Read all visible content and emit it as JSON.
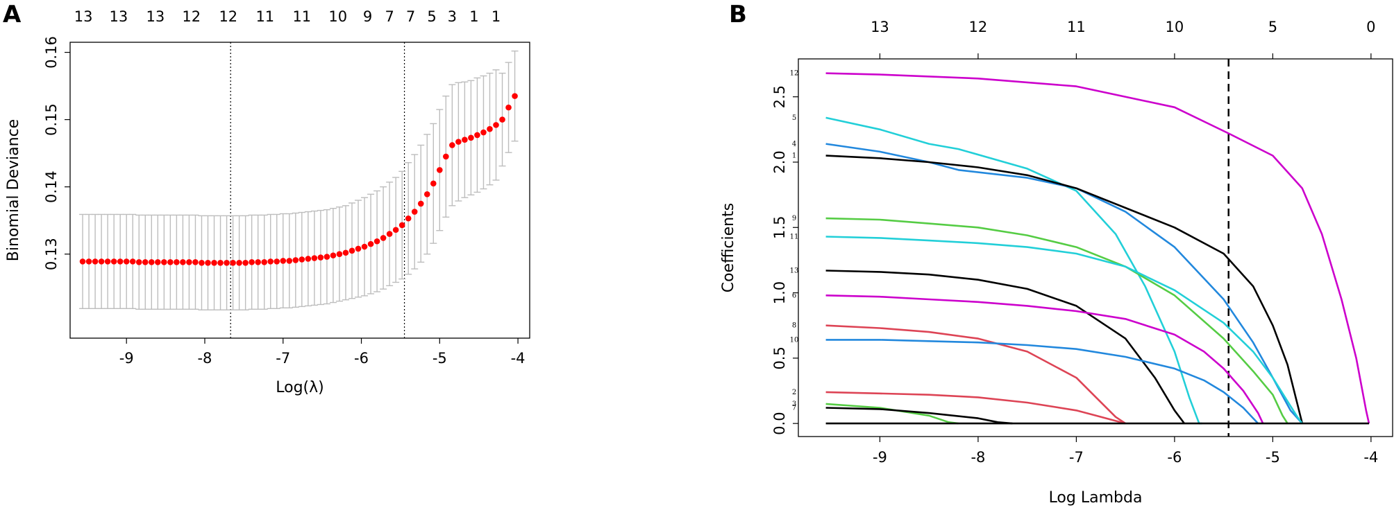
{
  "chart_data": [
    {
      "panel": "A",
      "type": "scatter",
      "xlabel": "Log(λ)",
      "ylabel": "Binomial Deviance",
      "xlim": [
        -9.72,
        -3.85
      ],
      "ylim": [
        0.1175,
        0.1615
      ],
      "x_ticks": [
        -9,
        -8,
        -7,
        -6,
        -5,
        -4
      ],
      "y_ticks": [
        0.13,
        0.14,
        0.15,
        0.16
      ],
      "top_axis_labels": [
        "13",
        "13",
        "13",
        "12",
        "12",
        "11",
        "11",
        "10",
        "9",
        "7",
        "7",
        "5",
        "3",
        "1",
        "1"
      ],
      "top_axis_positions": [
        -9.55,
        -9.1,
        -8.63,
        -8.17,
        -7.7,
        -7.23,
        -6.76,
        -6.3,
        -5.92,
        -5.64,
        -5.37,
        -5.1,
        -4.84,
        -4.56,
        -4.28
      ],
      "vlines": [
        -7.67,
        -5.45
      ],
      "grid": false,
      "series": [
        {
          "x": [
            -9.56,
            -9.48,
            -9.4,
            -9.32,
            -9.24,
            -9.16,
            -9.08,
            -9.0,
            -8.92,
            -8.84,
            -8.76,
            -8.68,
            -8.6,
            -8.52,
            -8.44,
            -8.36,
            -8.28,
            -8.2,
            -8.12,
            -8.04,
            -7.96,
            -7.88,
            -7.8,
            -7.72,
            -7.64,
            -7.56,
            -7.48,
            -7.4,
            -7.32,
            -7.24,
            -7.16,
            -7.08,
            -7.0,
            -6.92,
            -6.84,
            -6.76,
            -6.68,
            -6.6,
            -6.52,
            -6.44,
            -6.36,
            -6.28,
            -6.2,
            -6.12,
            -6.04,
            -5.96,
            -5.88,
            -5.8,
            -5.72,
            -5.64,
            -5.56,
            -5.48,
            -5.4,
            -5.32,
            -5.24,
            -5.16,
            -5.08,
            -5.0,
            -4.92,
            -4.84,
            -4.76,
            -4.68,
            -4.6,
            -4.52,
            -4.44,
            -4.36,
            -4.28,
            -4.2,
            -4.12,
            -4.04
          ],
          "y": [
            0.1289,
            0.1289,
            0.1289,
            0.1289,
            0.1289,
            0.1289,
            0.1289,
            0.1289,
            0.1289,
            0.1288,
            0.1288,
            0.1288,
            0.1288,
            0.1288,
            0.1288,
            0.1288,
            0.1288,
            0.1288,
            0.1288,
            0.1287,
            0.1287,
            0.1287,
            0.1287,
            0.1287,
            0.1287,
            0.1287,
            0.1287,
            0.1288,
            0.1288,
            0.1288,
            0.1289,
            0.1289,
            0.129,
            0.129,
            0.1291,
            0.1292,
            0.1293,
            0.1294,
            0.1295,
            0.1296,
            0.1298,
            0.13,
            0.1302,
            0.1305,
            0.1308,
            0.1311,
            0.1315,
            0.1319,
            0.1324,
            0.133,
            0.1336,
            0.1343,
            0.1353,
            0.1363,
            0.1375,
            0.1389,
            0.1405,
            0.1425,
            0.1445,
            0.1462,
            0.1467,
            0.147,
            0.1473,
            0.1477,
            0.1481,
            0.1486,
            0.1492,
            0.15,
            0.1518,
            0.1535
          ],
          "err": [
            0.007,
            0.007,
            0.007,
            0.007,
            0.007,
            0.007,
            0.007,
            0.007,
            0.007,
            0.007,
            0.007,
            0.007,
            0.007,
            0.007,
            0.007,
            0.007,
            0.007,
            0.007,
            0.007,
            0.007,
            0.007,
            0.007,
            0.007,
            0.007,
            0.007,
            0.007,
            0.007,
            0.007,
            0.007,
            0.007,
            0.007,
            0.007,
            0.007,
            0.007,
            0.007,
            0.007,
            0.007,
            0.007,
            0.007,
            0.007,
            0.007,
            0.007,
            0.007,
            0.0071,
            0.0072,
            0.0073,
            0.0074,
            0.0075,
            0.0076,
            0.0077,
            0.0078,
            0.008,
            0.0083,
            0.0085,
            0.0087,
            0.0089,
            0.0089,
            0.009,
            0.009,
            0.009,
            0.0088,
            0.0086,
            0.0085,
            0.0085,
            0.0084,
            0.0083,
            0.0082,
            0.0069,
            0.0067,
            0.0067
          ]
        }
      ]
    },
    {
      "panel": "B",
      "type": "line",
      "xlabel": "Log Lambda",
      "ylabel": "Coefficients",
      "xlim": [
        -9.83,
        -3.78
      ],
      "ylim": [
        -0.1,
        2.79
      ],
      "x_ticks": [
        -9,
        -8,
        -7,
        -6,
        -5,
        -4
      ],
      "y_ticks": [
        0.0,
        0.5,
        1.0,
        1.5,
        2.0,
        2.5
      ],
      "y_tick_labels": [
        "0.0",
        "0.5",
        "1.0",
        "1.5",
        "2.0",
        "2.5"
      ],
      "top_axis_labels": [
        "13",
        "12",
        "11",
        "10",
        "5",
        "0"
      ],
      "top_axis_positions": [
        -9,
        -8,
        -7,
        -6,
        -5,
        -4
      ],
      "vline": -5.45,
      "grid": false,
      "series": [
        {
          "label": "12",
          "color": "#CC00CC",
          "x": [
            -9.55,
            -9,
            -8,
            -7,
            -6,
            -5.45,
            -5,
            -4.7,
            -4.5,
            -4.3,
            -4.15,
            -4.05,
            -4.02
          ],
          "y": [
            2.68,
            2.67,
            2.64,
            2.58,
            2.42,
            2.22,
            2.05,
            1.8,
            1.45,
            0.95,
            0.5,
            0.1,
            0.0
          ]
        },
        {
          "label": "5",
          "color": "#22CFD8",
          "x": [
            -9.55,
            -9,
            -8.5,
            -8.2,
            -7.5,
            -7,
            -6.6,
            -6.3,
            -6.0,
            -5.85,
            -5.75,
            -5.72
          ],
          "y": [
            2.34,
            2.25,
            2.14,
            2.1,
            1.95,
            1.78,
            1.45,
            1.05,
            0.55,
            0.2,
            0.0,
            0.0
          ]
        },
        {
          "label": "4",
          "color": "#2288DD",
          "x": [
            -9.55,
            -9,
            -8.5,
            -8.2,
            -7.5,
            -7,
            -6.5,
            -6,
            -5.5,
            -5.2,
            -5.0,
            -4.82,
            -4.7
          ],
          "y": [
            2.14,
            2.08,
            2.0,
            1.94,
            1.88,
            1.8,
            1.62,
            1.35,
            0.95,
            0.62,
            0.35,
            0.1,
            0.0
          ]
        },
        {
          "label": "1",
          "color": "#000000",
          "x": [
            -9.55,
            -9,
            -8.5,
            -8,
            -7.5,
            -7,
            -6.5,
            -6,
            -5.5,
            -5.2,
            -5.0,
            -4.85,
            -4.75,
            -4.7
          ],
          "y": [
            2.05,
            2.03,
            2.0,
            1.96,
            1.9,
            1.8,
            1.65,
            1.5,
            1.3,
            1.05,
            0.75,
            0.45,
            0.15,
            0.0
          ]
        },
        {
          "label": "9",
          "color": "#55CC44",
          "x": [
            -9.55,
            -9,
            -8.5,
            -8,
            -7.5,
            -7,
            -6.5,
            -6,
            -5.5,
            -5.2,
            -5.0,
            -4.9,
            -4.85
          ],
          "y": [
            1.57,
            1.56,
            1.53,
            1.5,
            1.44,
            1.35,
            1.2,
            0.98,
            0.65,
            0.4,
            0.22,
            0.06,
            0.0
          ]
        },
        {
          "label": "11",
          "color": "#22CFD8",
          "x": [
            -9.55,
            -9,
            -8.5,
            -8,
            -7.5,
            -7,
            -6.5,
            -6,
            -5.5,
            -5.2,
            -5.0,
            -4.85,
            -4.75,
            -4.7
          ],
          "y": [
            1.43,
            1.42,
            1.4,
            1.38,
            1.35,
            1.3,
            1.2,
            1.02,
            0.77,
            0.55,
            0.35,
            0.17,
            0.05,
            0.0
          ]
        },
        {
          "label": "13",
          "color": "#000000",
          "x": [
            -9.55,
            -9,
            -8.5,
            -8,
            -7.5,
            -7,
            -6.5,
            -6.2,
            -6.0,
            -5.9
          ],
          "y": [
            1.17,
            1.16,
            1.14,
            1.1,
            1.03,
            0.9,
            0.65,
            0.35,
            0.1,
            0.0
          ]
        },
        {
          "label": "6",
          "color": "#CC00CC",
          "x": [
            -9.55,
            -9,
            -8.5,
            -8,
            -7.5,
            -7,
            -6.5,
            -6,
            -5.7,
            -5.5,
            -5.3,
            -5.15,
            -5.1
          ],
          "y": [
            0.98,
            0.97,
            0.95,
            0.93,
            0.9,
            0.86,
            0.8,
            0.68,
            0.55,
            0.42,
            0.25,
            0.08,
            0.0
          ]
        },
        {
          "label": "8",
          "color": "#DD4455",
          "x": [
            -9.55,
            -9,
            -8.5,
            -8,
            -7.5,
            -7,
            -6.8,
            -6.6,
            -6.5
          ],
          "y": [
            0.75,
            0.73,
            0.7,
            0.65,
            0.55,
            0.35,
            0.2,
            0.05,
            0.0
          ]
        },
        {
          "label": "10",
          "color": "#2288DD",
          "x": [
            -9.55,
            -9,
            -8.5,
            -8,
            -7.5,
            -7,
            -6.5,
            -6,
            -5.7,
            -5.5,
            -5.3,
            -5.2,
            -5.15
          ],
          "y": [
            0.64,
            0.64,
            0.63,
            0.62,
            0.6,
            0.57,
            0.51,
            0.42,
            0.33,
            0.24,
            0.12,
            0.04,
            0.0
          ]
        },
        {
          "label": "2",
          "color": "#DD4455",
          "x": [
            -9.55,
            -9,
            -8.5,
            -8,
            -7.5,
            -7,
            -6.8,
            -6.6,
            -6.5
          ],
          "y": [
            0.24,
            0.23,
            0.22,
            0.2,
            0.16,
            0.1,
            0.06,
            0.02,
            0.0
          ]
        },
        {
          "label": "3",
          "color": "#55CC44",
          "x": [
            -9.55,
            -9,
            -8.5,
            -8.3,
            -8.2
          ],
          "y": [
            0.15,
            0.12,
            0.06,
            0.01,
            0.0
          ]
        },
        {
          "label": "7",
          "color": "#000000",
          "x": [
            -9.55,
            -9,
            -8.5,
            -8,
            -7.8,
            -7.65
          ],
          "y": [
            0.12,
            0.11,
            0.08,
            0.04,
            0.01,
            0.0
          ]
        },
        {
          "label": "",
          "color": "#000000",
          "x": [
            -9.55,
            -4.02
          ],
          "y": [
            0.0,
            0.0
          ]
        }
      ]
    }
  ],
  "labels": {
    "panel_a": "A",
    "panel_b": "B"
  }
}
